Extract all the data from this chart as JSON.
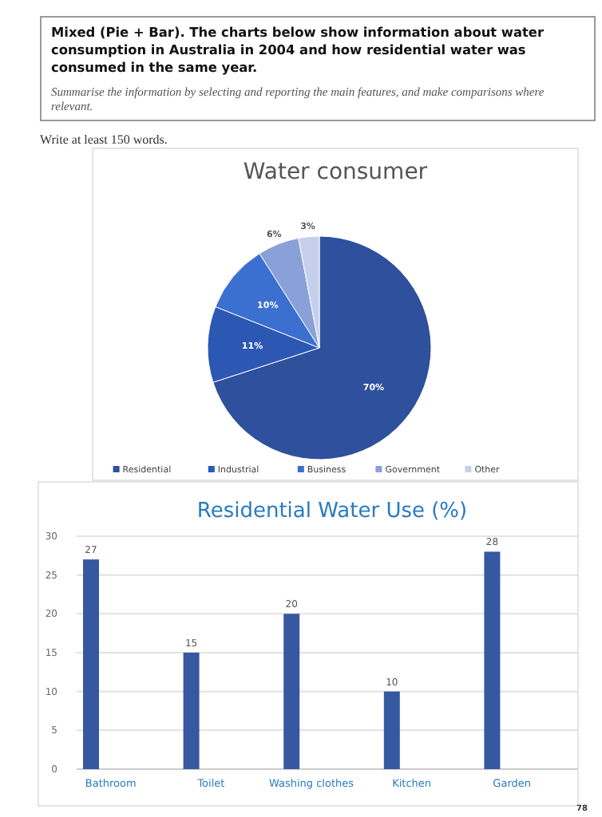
{
  "chart_data": [
    {
      "type": "other",
      "title": "Mixed (Pie + Bar). The charts below show information about water consumption in Australia in 2004 and how residential water was consumed in the same year.",
      "subtitle": "Summarise the information by selecting and reporting the main features, and make comparisons where relevant.",
      "annotations": [
        "Write at least 150 words."
      ]
    },
    {
      "type": "pie",
      "title": "Water consumer",
      "categories": [
        "Residential",
        "Industrial",
        "Business",
        "Government",
        "Other"
      ],
      "values": [
        70,
        11,
        10,
        6,
        3
      ],
      "colors": [
        "#2f509c",
        "#2c58b4",
        "#3b6fd0",
        "#8aa0d8",
        "#c6d0ec"
      ],
      "value_labels": [
        "70%",
        "11%",
        "10%",
        "6%",
        "3%"
      ],
      "legend": "bottom"
    },
    {
      "type": "bar",
      "title": "Residential Water Use (%)",
      "categories": [
        "Bathroom",
        "Toilet",
        "Washing clothes",
        "Kitchen",
        "Garden"
      ],
      "values": [
        27,
        15,
        20,
        10,
        28
      ],
      "color": "#3558a0",
      "ylim": [
        0,
        30
      ],
      "yticks": [
        0,
        5,
        10,
        15,
        20,
        25,
        30
      ],
      "grid": "y",
      "data_labels": true,
      "annotations": [
        "78"
      ]
    }
  ]
}
